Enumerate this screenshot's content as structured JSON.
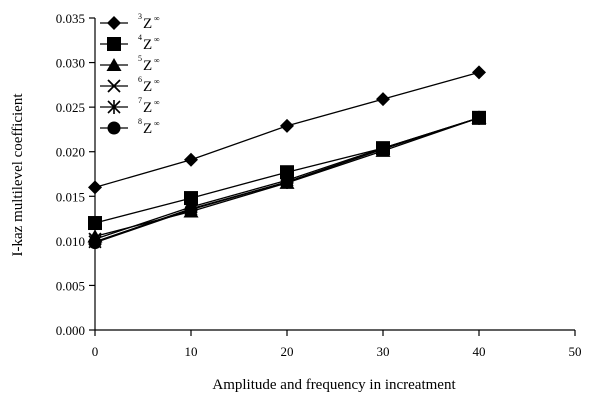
{
  "chart_data": {
    "type": "line",
    "xlabel": "Amplitude and frequency in increatment",
    "ylabel": "I-kaz multilevel coefficient",
    "xlim": [
      0,
      50
    ],
    "ylim": [
      0,
      0.035
    ],
    "x_ticks": [
      "0",
      "10",
      "20",
      "30",
      "40",
      "50"
    ],
    "y_ticks": [
      "0.000",
      "0.005",
      "0.010",
      "0.015",
      "0.020",
      "0.025",
      "0.030",
      "0.035"
    ],
    "grid": false,
    "legend_position": "top-left",
    "x": [
      0,
      10,
      20,
      30,
      40
    ],
    "series": [
      {
        "name": "³Z∞",
        "sup": "3",
        "base": "Z",
        "tail": "∞",
        "marker": "diamond",
        "values": [
          0.016,
          0.0191,
          0.0229,
          0.0259,
          0.0289
        ]
      },
      {
        "name": "⁴Z∞",
        "sup": "4",
        "base": "Z",
        "tail": "∞",
        "marker": "square",
        "values": [
          0.012,
          0.0148,
          0.0177,
          0.0204,
          0.0238
        ]
      },
      {
        "name": "⁵Z∞",
        "sup": "5",
        "base": "Z",
        "tail": "∞",
        "marker": "triangle",
        "values": [
          0.0105,
          0.0133,
          0.0165,
          0.0201,
          0.0238
        ]
      },
      {
        "name": "⁶Z∞",
        "sup": "6",
        "base": "Z",
        "tail": "∞",
        "marker": "x",
        "values": [
          0.0102,
          0.0138,
          0.0168,
          0.0204,
          0.0238
        ]
      },
      {
        "name": "⁷Z∞",
        "sup": "7",
        "base": "Z",
        "tail": "∞",
        "marker": "asterisk",
        "values": [
          0.0099,
          0.0136,
          0.0166,
          0.0203,
          0.0238
        ]
      },
      {
        "name": "⁸Z∞",
        "sup": "8",
        "base": "Z",
        "tail": "∞",
        "marker": "circle",
        "values": [
          0.0098,
          0.0135,
          0.0166,
          0.0203,
          0.0238
        ]
      }
    ],
    "colors": {
      "line": "#000000",
      "background": "#ffffff"
    }
  }
}
